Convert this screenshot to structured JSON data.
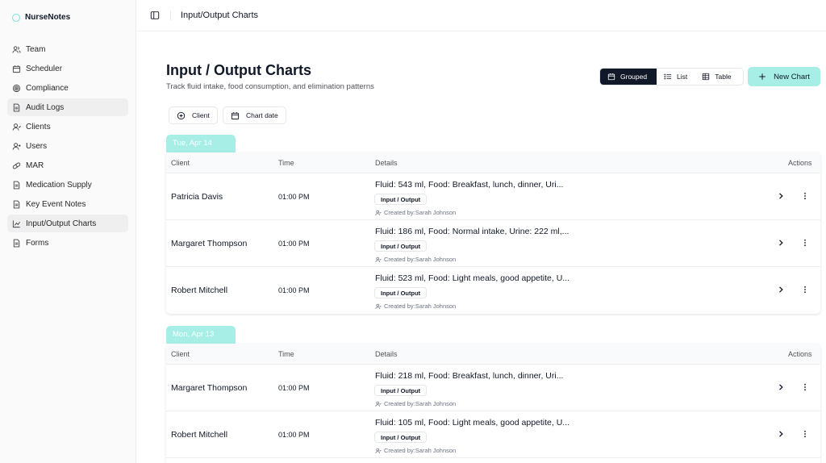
{
  "app": {
    "name": "NurseNotes"
  },
  "sidebar": {
    "items": [
      {
        "label": "Team",
        "icon": "users-icon"
      },
      {
        "label": "Scheduler",
        "icon": "calendar-icon"
      },
      {
        "label": "Compliance",
        "icon": "target-icon"
      },
      {
        "label": "Audit Logs",
        "icon": "document-icon"
      },
      {
        "label": "Clients",
        "icon": "user-icon"
      },
      {
        "label": "Users",
        "icon": "user-plus-icon"
      },
      {
        "label": "MAR",
        "icon": "pill-icon"
      },
      {
        "label": "Medication Supply",
        "icon": "document-icon"
      },
      {
        "label": "Key Event Notes",
        "icon": "document-icon"
      },
      {
        "label": "Input/Output Charts",
        "icon": "chart-icon"
      },
      {
        "label": "Forms",
        "icon": "document-icon"
      }
    ]
  },
  "topbar": {
    "title": "Input/Output Charts"
  },
  "page": {
    "title": "Input / Output Charts",
    "subtitle": "Track fluid intake, food consumption, and elimination patterns"
  },
  "view_toggle": {
    "grouped": "Grouped",
    "list": "List",
    "table": "Table",
    "selected": "Grouped"
  },
  "actions": {
    "new_chart": "New Chart"
  },
  "filters": {
    "client": "Client",
    "chart_date": "Chart date"
  },
  "table_headers": {
    "client": "Client",
    "time": "Time",
    "details": "Details",
    "actions": "Actions"
  },
  "groups": [
    {
      "date": "Tue, Apr 14",
      "rows": [
        {
          "client": "Patricia Davis",
          "time": "01:00 PM",
          "details": "Fluid: 543 ml, Food: Breakfast, lunch, dinner, Uri...",
          "badge": "Input / Output",
          "created": "Created by:Sarah Johnson"
        },
        {
          "client": "Margaret Thompson",
          "time": "01:00 PM",
          "details": "Fluid: 186 ml, Food: Normal intake, Urine: 222 ml,...",
          "badge": "Input / Output",
          "created": "Created by:Sarah Johnson"
        },
        {
          "client": "Robert Mitchell",
          "time": "01:00 PM",
          "details": "Fluid: 523 ml, Food: Light meals, good appetite, U...",
          "badge": "Input / Output",
          "created": "Created by:Sarah Johnson"
        }
      ]
    },
    {
      "date": "Mon, Apr 13",
      "rows": [
        {
          "client": "Margaret Thompson",
          "time": "01:00 PM",
          "details": "Fluid: 218 ml, Food: Breakfast, lunch, dinner, Uri...",
          "badge": "Input / Output",
          "created": "Created by:Sarah Johnson"
        },
        {
          "client": "Robert Mitchell",
          "time": "01:00 PM",
          "details": "Fluid: 105 ml, Food: Light meals, good appetite, U...",
          "badge": "Input / Output",
          "created": "Created by:Sarah Johnson"
        }
      ]
    }
  ],
  "colors": {
    "accent": "#a7efe6",
    "dark": "#111827",
    "active_nav": "#efefef"
  }
}
